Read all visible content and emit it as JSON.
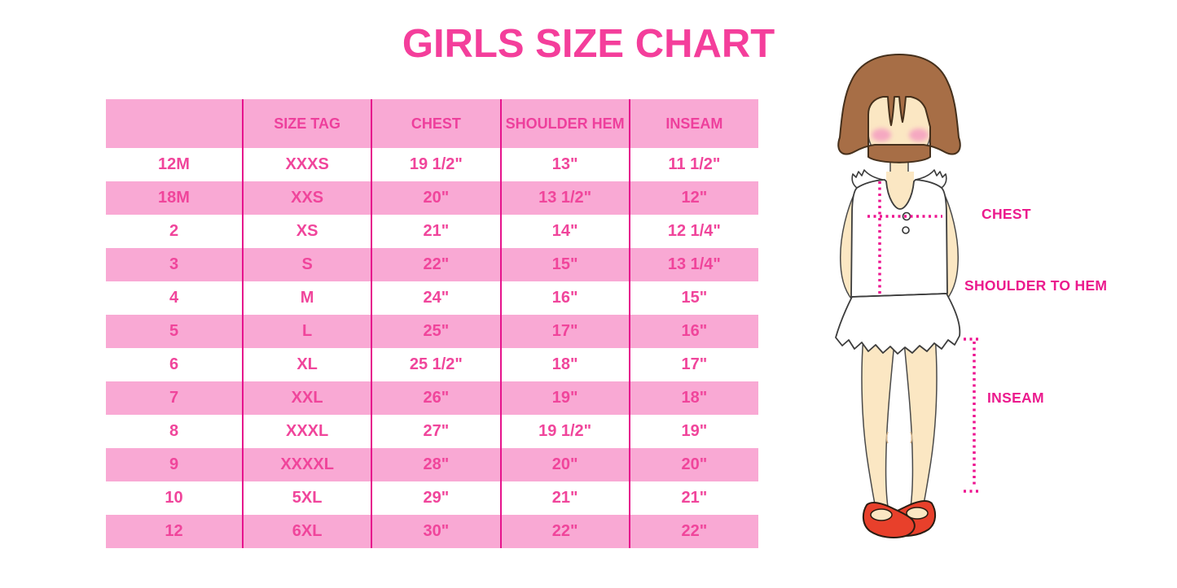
{
  "title": "GIRLS SIZE CHART",
  "table": {
    "headers": [
      "",
      "SIZE TAG",
      "CHEST",
      "SHOULDER HEM",
      "INSEAM"
    ],
    "rows": [
      [
        "12M",
        "XXXS",
        "19 1/2\"",
        "13\"",
        "11 1/2\""
      ],
      [
        "18M",
        "XXS",
        "20\"",
        "13 1/2\"",
        "12\""
      ],
      [
        "2",
        "XS",
        "21\"",
        "14\"",
        "12 1/4\""
      ],
      [
        "3",
        "S",
        "22\"",
        "15\"",
        "13 1/4\""
      ],
      [
        "4",
        "M",
        "24\"",
        "16\"",
        "15\""
      ],
      [
        "5",
        "L",
        "25\"",
        "17\"",
        "16\""
      ],
      [
        "6",
        "XL",
        "25 1/2\"",
        "18\"",
        "17\""
      ],
      [
        "7",
        "XXL",
        "26\"",
        "19\"",
        "18\""
      ],
      [
        "8",
        "XXXL",
        "27\"",
        "19 1/2\"",
        "19\""
      ],
      [
        "9",
        "XXXXL",
        "28\"",
        "20\"",
        "20\""
      ],
      [
        "10",
        "5XL",
        "29\"",
        "21\"",
        "21\""
      ],
      [
        "12",
        "6XL",
        "30\"",
        "22\"",
        "22\""
      ]
    ]
  },
  "diagram": {
    "chest_label": "CHEST",
    "shoulder_to_hem_label": "SHOULDER TO HEM",
    "inseam_label": "INSEAM"
  },
  "colors": {
    "title_pink": "#F43E9B",
    "row_pink": "#F9A9D4",
    "separator_magenta": "#E6138C",
    "table_text_pink": "#F0459B",
    "label_magenta": "#EB1A8D",
    "dotted_line_magenta": "#ED1490",
    "hair_brown": "#A76E46",
    "skin": "#FBE7C3",
    "blush_pink": "#F5A8C1",
    "shoe_red": "#E8402B"
  }
}
